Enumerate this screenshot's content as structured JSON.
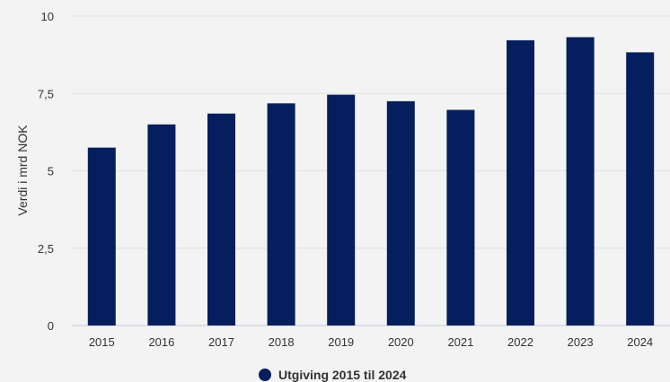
{
  "chart_data": {
    "type": "bar",
    "categories": [
      "2015",
      "2016",
      "2017",
      "2018",
      "2019",
      "2020",
      "2021",
      "2022",
      "2023",
      "2024"
    ],
    "series": [
      {
        "name": "Utgiving 2015 til 2024",
        "values": [
          5.75,
          6.5,
          6.85,
          7.18,
          7.46,
          7.25,
          6.97,
          9.22,
          9.32,
          8.83
        ],
        "color": "#041e5e"
      }
    ],
    "title": "",
    "xlabel": "",
    "ylabel": "Verdi i mrd NOK",
    "ylim": [
      0,
      10
    ],
    "yticks": [
      0,
      2.5,
      5,
      7.5,
      10
    ],
    "ytick_labels": [
      "0",
      "2,5",
      "5",
      "7,5",
      "10"
    ],
    "grid": true,
    "legend_position": "bottom-center"
  }
}
